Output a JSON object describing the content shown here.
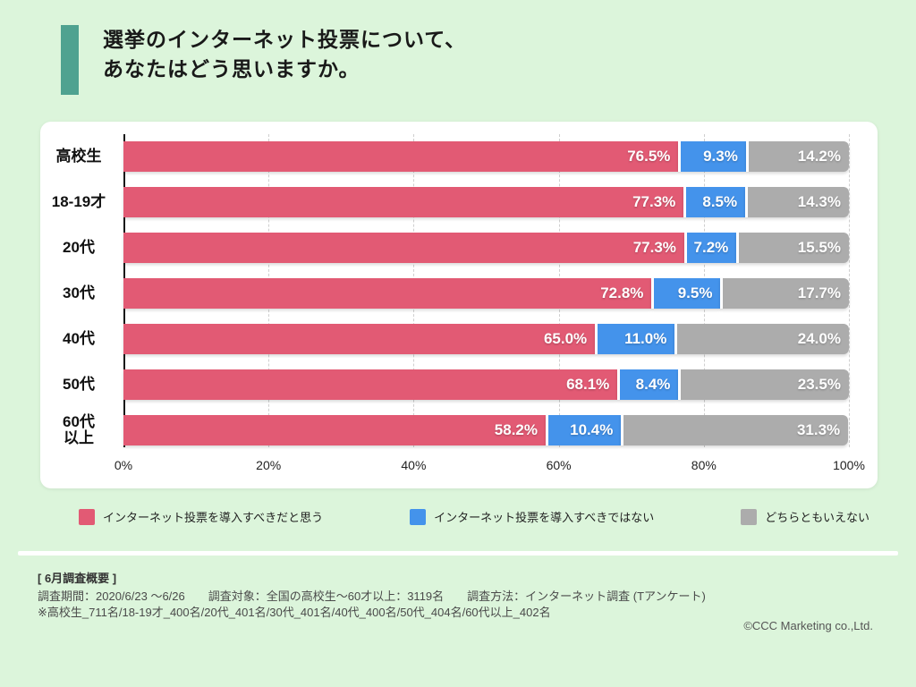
{
  "header": {
    "title_line1": "選挙のインターネット投票について、",
    "title_line2": "あなたはどう思いますか。",
    "accent_color": "#4FA290"
  },
  "chart_data": {
    "type": "bar",
    "orientation": "horizontal",
    "stacked": true,
    "categories": [
      "高校生",
      "18-19才",
      "20代",
      "30代",
      "40代",
      "50代",
      "60代\n以上"
    ],
    "series": [
      {
        "name": "インターネット投票を導入すべきだと思う",
        "color": "#E25A74",
        "values": [
          76.5,
          77.3,
          77.3,
          72.8,
          65.0,
          68.1,
          58.2
        ]
      },
      {
        "name": "インターネット投票を導入すべきではない",
        "color": "#4493EB",
        "values": [
          9.3,
          8.5,
          7.2,
          9.5,
          11.0,
          8.4,
          10.4
        ]
      },
      {
        "name": "どちらともいえない",
        "color": "#ACACAC",
        "values": [
          14.2,
          14.3,
          15.5,
          17.7,
          24.0,
          23.5,
          31.3
        ]
      }
    ],
    "value_suffix": "%",
    "x_ticks": [
      "0%",
      "20%",
      "40%",
      "60%",
      "80%",
      "100%"
    ],
    "xlim": [
      0,
      100
    ],
    "grid": true,
    "legend_position": "bottom"
  },
  "footer": {
    "heading": "[ 6月調査概要 ]",
    "line1": "調査期間：2020/6/23 〜6/26　　調査対象：全国の高校生〜60才以上：3119名　　調査方法：インターネット調査 (Tアンケート)",
    "line2": "※高校生_711名/18-19才_400名/20代_401名/30代_401名/40代_400名/50代_404名/60代以上_402名",
    "copyright": "©CCC Marketing co.,Ltd."
  }
}
